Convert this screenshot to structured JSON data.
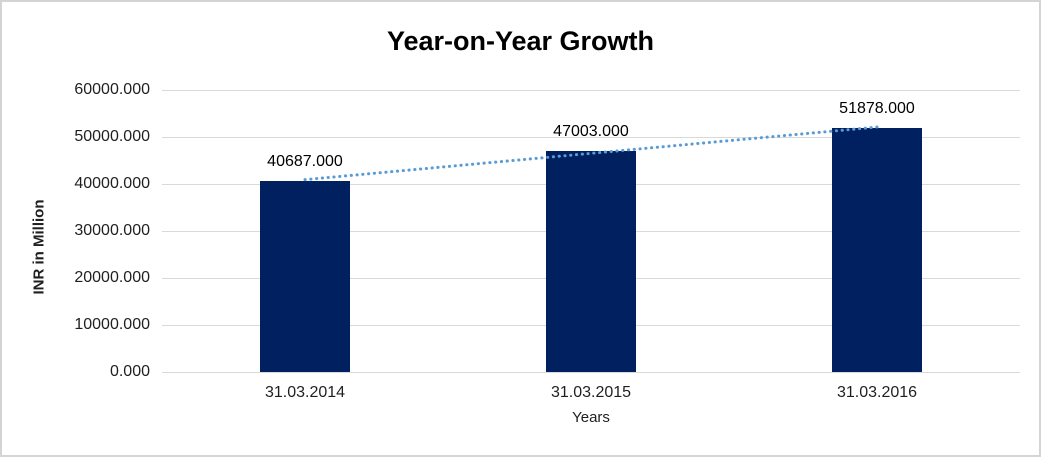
{
  "chart_data": {
    "type": "bar",
    "title": "Year-on-Year Growth",
    "xlabel": "Years",
    "ylabel": "INR in Million",
    "categories": [
      "31.03.2014",
      "31.03.2015",
      "31.03.2016"
    ],
    "values": [
      40687,
      47003,
      51878
    ],
    "data_labels": [
      "40687.000",
      "47003.000",
      "51878.000"
    ],
    "ytick_labels": [
      "0.000",
      "10000.000",
      "20000.000",
      "30000.000",
      "40000.000",
      "50000.000",
      "60000.000"
    ],
    "ylim": [
      0,
      60000
    ],
    "grid": true,
    "legend": false,
    "colors": {
      "bar": "#002060",
      "trendline": "#5B9BD5",
      "gridline": "#d9d9d9",
      "text": "#1f1f1f",
      "title_text": "#000000",
      "frame_border": "#d4d4d4"
    },
    "trendline": {
      "style": "dotted",
      "fit": "linear"
    }
  }
}
